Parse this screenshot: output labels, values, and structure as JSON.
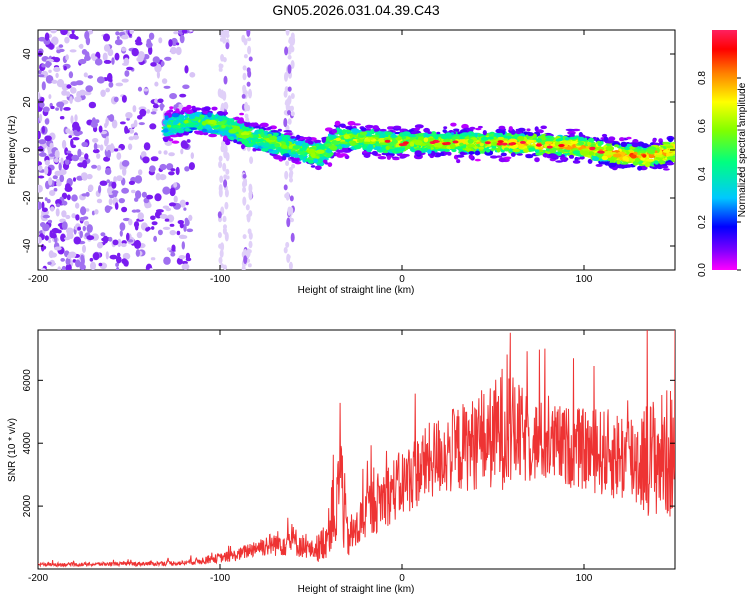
{
  "title": "GN05.2026.031.04.39.C43",
  "chart_data": [
    {
      "type": "heatmap",
      "xlabel": "Height of straight line (km)",
      "ylabel": "Frequency (Hz)",
      "xlim": [
        -200,
        150
      ],
      "ylim": [
        -50,
        50
      ],
      "xticks": [
        -200,
        -100,
        0,
        100
      ],
      "yticks": [
        -40,
        -20,
        0,
        20,
        40
      ],
      "colorbar": {
        "label": "Normalized spectral amplitude",
        "range": [
          0,
          1
        ],
        "ticks": [
          0.0,
          0.2,
          0.4,
          0.6,
          0.8
        ],
        "colors": [
          "#ff00ff",
          "#8000ff",
          "#0000ff",
          "#00c8ff",
          "#00ff80",
          "#80ff00",
          "#ffff00",
          "#ff8000",
          "#ff0000",
          "#ff2060"
        ]
      },
      "ridge": {
        "x": [
          -130,
          -115,
          -100,
          -85,
          -70,
          -55,
          -45,
          -35,
          -20,
          -5,
          0,
          20,
          40,
          60,
          80,
          100,
          120,
          135,
          150
        ],
        "freq": [
          10,
          12,
          11,
          6,
          3,
          0,
          -2,
          5,
          4,
          3,
          3,
          3,
          3,
          3,
          2,
          1,
          -2,
          -3,
          0
        ]
      },
      "noise_region_x": [
        -200,
        -115
      ]
    },
    {
      "type": "line",
      "xlabel": "Height of straight line (km)",
      "ylabel": "SNR (10 * v/v)",
      "xlim": [
        -200,
        150
      ],
      "ylim": [
        0,
        7600
      ],
      "xticks": [
        -200,
        -100,
        0,
        100
      ],
      "yticks": [
        2000,
        4000,
        6000
      ],
      "color": "#ee3333",
      "series": [
        {
          "name": "SNR",
          "x": [
            -200,
            -180,
            -160,
            -140,
            -120,
            -100,
            -90,
            -80,
            -70,
            -60,
            -50,
            -45,
            -40,
            -38,
            -36,
            -34,
            -32,
            -30,
            -25,
            -20,
            -10,
            0,
            10,
            20,
            30,
            40,
            50,
            55,
            60,
            70,
            80,
            90,
            100,
            110,
            120,
            130,
            140,
            150
          ],
          "y": [
            150,
            140,
            160,
            170,
            190,
            350,
            450,
            700,
            800,
            900,
            600,
            700,
            1200,
            2300,
            1500,
            3800,
            2000,
            1000,
            1200,
            1800,
            2300,
            2700,
            3200,
            3600,
            3800,
            4000,
            4200,
            4500,
            4400,
            4100,
            4000,
            3900,
            3800,
            3700,
            3600,
            3500,
            3600,
            3700
          ],
          "spread": [
            60,
            60,
            60,
            70,
            80,
            150,
            200,
            300,
            400,
            500,
            300,
            500,
            800,
            1500,
            1200,
            2000,
            1500,
            700,
            700,
            900,
            1000,
            1100,
            1200,
            1300,
            1400,
            1500,
            1700,
            2000,
            1800,
            1400,
            1300,
            1300,
            1300,
            1400,
            1500,
            1700,
            2000,
            2200
          ]
        }
      ]
    }
  ]
}
